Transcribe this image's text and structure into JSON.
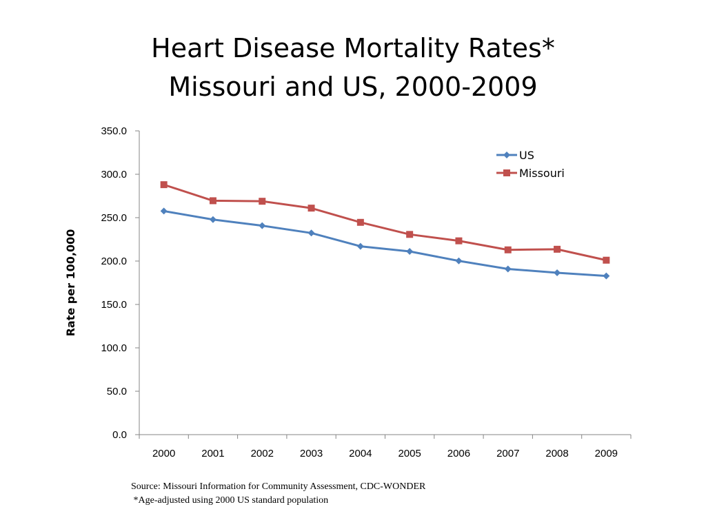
{
  "title": {
    "line1": "Heart Disease Mortality Rates*",
    "line2": "Missouri and US, 2000-2009"
  },
  "footnotes": {
    "source": "Source: Missouri Information for Community Assessment, CDC-WONDER",
    "note": " *Age-adjusted using 2000 US standard population"
  },
  "chart_data": {
    "type": "line",
    "title": "Heart Disease Mortality Rates* Missouri and US, 2000-2009",
    "xlabel": "",
    "ylabel": "Rate per 100,000",
    "ylim": [
      0,
      350
    ],
    "yticks": [
      "0.0",
      "50.0",
      "100.0",
      "150.0",
      "200.0",
      "250.0",
      "300.0",
      "350.0"
    ],
    "categories": [
      "2000",
      "2001",
      "2002",
      "2003",
      "2004",
      "2005",
      "2006",
      "2007",
      "2008",
      "2009"
    ],
    "grid": false,
    "legend": "top-right",
    "series": [
      {
        "name": "US",
        "color": "#4F81BD",
        "marker": "diamond",
        "values": [
          257.6,
          247.8,
          240.8,
          232.3,
          217.0,
          211.1,
          200.2,
          190.9,
          186.5,
          182.8
        ]
      },
      {
        "name": "Missouri",
        "color": "#C0504D",
        "marker": "square",
        "values": [
          288.0,
          269.5,
          268.9,
          261.0,
          244.6,
          230.7,
          223.3,
          212.9,
          213.6,
          201.0
        ]
      }
    ]
  }
}
